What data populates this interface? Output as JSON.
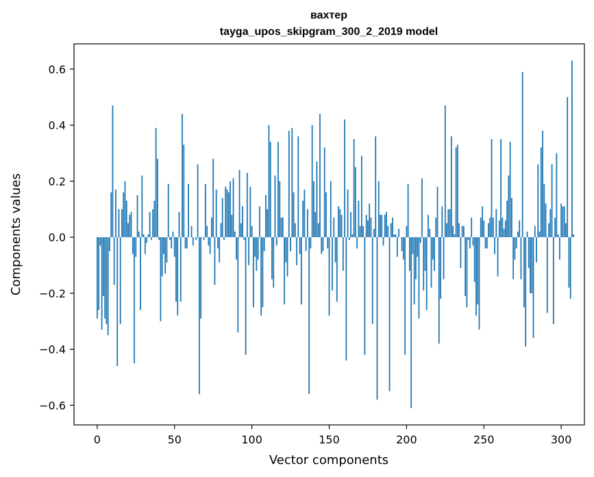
{
  "chart_data": {
    "type": "bar",
    "title": "вахтер",
    "subtitle": "tayga_upos_skipgram_300_2_2019 model",
    "xlabel": "Vector components",
    "ylabel": "Components values",
    "xlim": [
      -15,
      315
    ],
    "ylim": [
      -0.67,
      0.69
    ],
    "xticks": [
      0,
      50,
      100,
      150,
      200,
      250,
      300
    ],
    "yticks": [
      -0.6,
      -0.4,
      -0.2,
      0.0,
      0.2,
      0.4,
      0.6
    ],
    "ytick_labels": [
      "−0.6",
      "−0.4",
      "−0.2",
      "0.0",
      "0.2",
      "0.4",
      "0.6"
    ],
    "bar_color": "#1f77b4",
    "values": [
      -0.29,
      -0.26,
      -0.03,
      -0.33,
      -0.21,
      -0.29,
      -0.31,
      -0.35,
      -0.05,
      0.16,
      0.47,
      -0.17,
      0.17,
      -0.46,
      0.1,
      -0.31,
      0.1,
      0.16,
      0.2,
      0.13,
      0.05,
      0.08,
      0.09,
      -0.06,
      -0.45,
      -0.07,
      0.15,
      0.02,
      -0.26,
      0.22,
      0.01,
      -0.06,
      -0.02,
      0.01,
      0.09,
      -0.01,
      0.1,
      0.13,
      0.39,
      0.28,
      -0.01,
      -0.3,
      -0.14,
      -0.06,
      -0.13,
      -0.09,
      0.19,
      -0.01,
      -0.04,
      0.02,
      -0.07,
      -0.23,
      -0.28,
      0.09,
      -0.23,
      0.44,
      0.33,
      -0.04,
      -0.04,
      0.19,
      0.0,
      0.04,
      -0.03,
      0.0,
      -0.01,
      0.26,
      -0.56,
      -0.29,
      0.0,
      -0.01,
      0.19,
      0.04,
      -0.03,
      -0.06,
      0.07,
      0.28,
      -0.17,
      0.17,
      -0.04,
      -0.09,
      0.05,
      0.14,
      -0.01,
      0.18,
      0.17,
      0.16,
      0.2,
      0.08,
      0.21,
      0.02,
      -0.08,
      -0.34,
      0.24,
      0.05,
      0.11,
      -0.01,
      -0.42,
      0.23,
      -0.1,
      0.18,
      0.04,
      -0.25,
      -0.07,
      -0.12,
      -0.08,
      0.11,
      -0.28,
      -0.25,
      -0.05,
      0.15,
      0.1,
      0.4,
      0.34,
      -0.15,
      -0.18,
      0.22,
      -0.03,
      0.34,
      0.2,
      0.07,
      0.07,
      -0.24,
      -0.09,
      -0.14,
      0.38,
      -0.05,
      0.39,
      0.16,
      0.05,
      -0.1,
      0.36,
      -0.06,
      -0.24,
      0.13,
      0.17,
      -0.05,
      0.1,
      -0.56,
      -0.04,
      0.4,
      0.2,
      0.09,
      0.27,
      0.05,
      0.44,
      -0.06,
      -0.05,
      0.32,
      0.16,
      -0.04,
      -0.28,
      0.2,
      -0.19,
      0.07,
      -0.09,
      -0.23,
      0.11,
      0.1,
      0.08,
      -0.12,
      0.42,
      -0.44,
      0.17,
      -0.01,
      0.09,
      0.01,
      0.35,
      0.25,
      -0.04,
      0.13,
      0.04,
      0.29,
      0.04,
      -0.42,
      0.08,
      0.06,
      0.12,
      0.07,
      -0.31,
      0.03,
      0.36,
      -0.58,
      0.2,
      0.08,
      0.08,
      -0.03,
      0.08,
      0.09,
      0.04,
      -0.55,
      0.05,
      0.07,
      0.01,
      0.01,
      -0.07,
      0.03,
      0.0,
      -0.05,
      -0.08,
      -0.42,
      0.04,
      0.19,
      -0.12,
      -0.61,
      -0.06,
      -0.24,
      -0.15,
      -0.07,
      -0.29,
      -0.02,
      0.21,
      -0.19,
      -0.12,
      -0.26,
      0.08,
      0.03,
      -0.18,
      -0.08,
      -0.12,
      0.07,
      0.18,
      -0.38,
      -0.22,
      0.11,
      -0.15,
      0.47,
      0.05,
      0.1,
      0.1,
      0.36,
      0.04,
      0.01,
      0.32,
      0.33,
      0.05,
      -0.11,
      0.04,
      0.04,
      -0.21,
      -0.25,
      -0.01,
      -0.04,
      0.07,
      -0.03,
      -0.16,
      -0.28,
      -0.24,
      -0.33,
      0.07,
      0.11,
      0.06,
      -0.04,
      -0.04,
      0.05,
      0.07,
      0.35,
      0.07,
      -0.06,
      0.1,
      -0.14,
      0.06,
      0.35,
      0.07,
      0.03,
      0.06,
      0.13,
      0.22,
      0.34,
      0.14,
      -0.15,
      -0.08,
      -0.04,
      0.02,
      0.06,
      -0.15,
      0.59,
      -0.25,
      -0.39,
      0.02,
      -0.11,
      -0.2,
      -0.2,
      -0.36,
      0.04,
      -0.09,
      0.26,
      0.02,
      0.32,
      0.38,
      0.19,
      0.12,
      -0.27,
      0.05,
      0.1,
      0.26,
      -0.31,
      0.07,
      0.3,
      0.01,
      -0.08,
      0.12,
      0.11,
      0.11,
      0.05,
      0.5,
      -0.18,
      -0.22,
      0.63,
      0.01
    ]
  }
}
